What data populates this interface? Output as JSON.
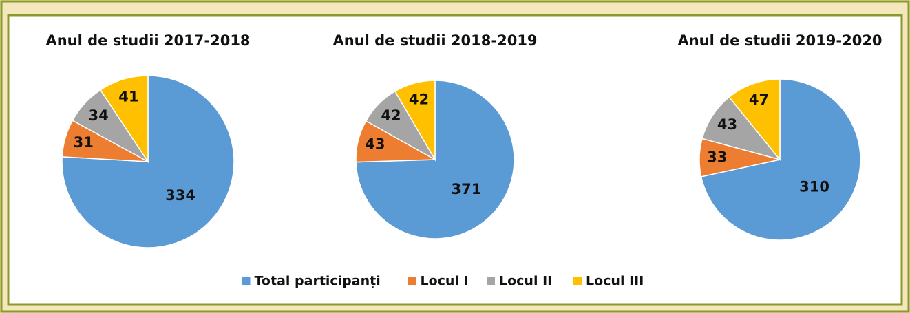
{
  "chart_data": [
    {
      "type": "pie",
      "title": "Anul de studii 2017-2018",
      "categories": [
        "Total participanți",
        "Locul I",
        "Locul II",
        "Locul III"
      ],
      "values": [
        334,
        31,
        34,
        41
      ],
      "colors": [
        "#5b9bd5",
        "#ed7d31",
        "#a5a5a5",
        "#ffc000"
      ]
    },
    {
      "type": "pie",
      "title": "Anul de studii 2018-2019",
      "categories": [
        "Total participanți",
        "Locul I",
        "Locul II",
        "Locul III"
      ],
      "values": [
        371,
        43,
        42,
        42
      ],
      "colors": [
        "#5b9bd5",
        "#ed7d31",
        "#a5a5a5",
        "#ffc000"
      ]
    },
    {
      "type": "pie",
      "title": "Anul de studii 2019-2020",
      "categories": [
        "Total participanți",
        "Locul I",
        "Locul II",
        "Locul III"
      ],
      "values": [
        310,
        33,
        43,
        47
      ],
      "colors": [
        "#5b9bd5",
        "#ed7d31",
        "#a5a5a5",
        "#ffc000"
      ]
    }
  ]
}
